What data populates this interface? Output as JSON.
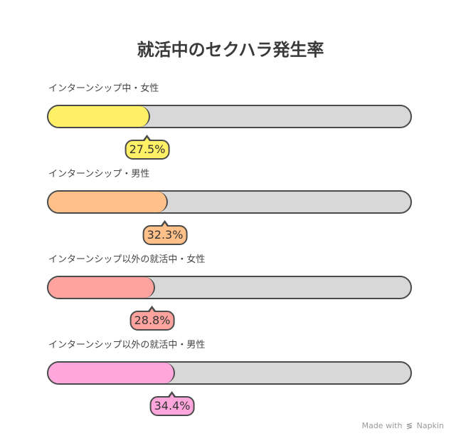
{
  "chart_data": {
    "type": "bar",
    "title": "就活中のセクハラ発生率",
    "categories": [
      "インターンシップ中・女性",
      "インターンシップ・男性",
      "インターンシップ以外の就活中・女性",
      "インターンシップ以外の就活中・男性"
    ],
    "values": [
      27.5,
      32.3,
      28.8,
      34.4
    ],
    "value_labels": [
      "27.5%",
      "32.3%",
      "28.8%",
      "34.4%"
    ],
    "colors": [
      "#fff066",
      "#ffc08a",
      "#ffa39e",
      "#ffa6dd"
    ],
    "track_color": "#d8d8d8",
    "ylim": [
      0,
      100
    ]
  },
  "footer": {
    "made_with": "Made with",
    "brand": "Napkin"
  }
}
